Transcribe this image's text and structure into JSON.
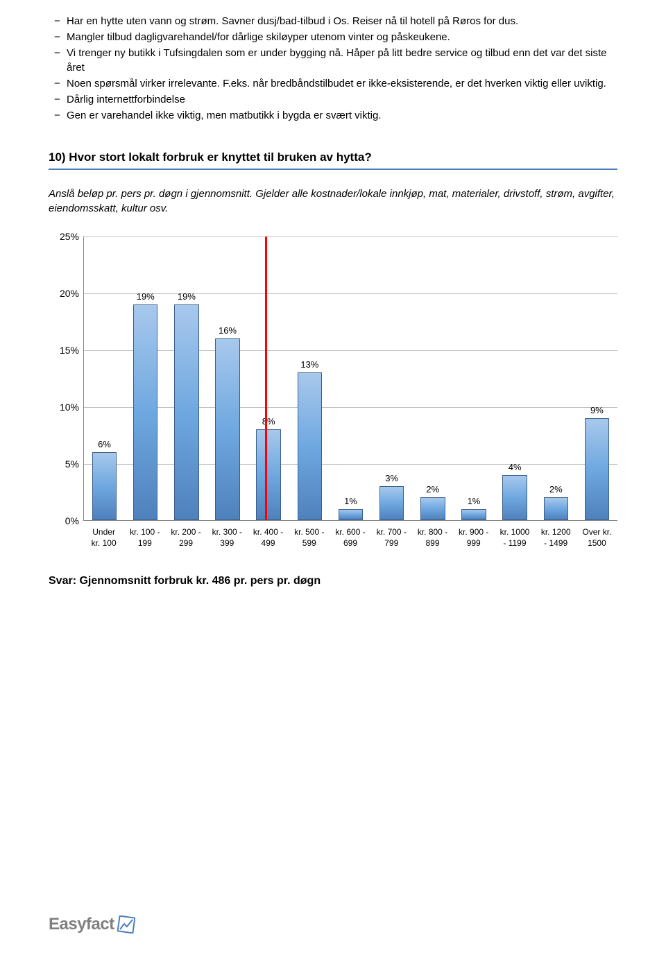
{
  "bullets": [
    "Har en hytte uten vann og strøm. Savner dusj/bad-tilbud i Os. Reiser nå til hotell på Røros for dus.",
    "Mangler tilbud dagligvarehandel/for dårlige skiløyper utenom vinter og påskeukene.",
    "Vi trenger ny butikk i Tufsingdalen som er under bygging nå. Håper på litt bedre service og tilbud enn det var det siste året",
    "Noen spørsmål virker irrelevante. F.eks. når bredbåndstilbudet er ikke-eksisterende, er det hverken viktig eller uviktig.",
    "Dårlig internettforbindelse",
    "Gen er varehandel ikke viktig, men matbutikk i bygda er svært viktig."
  ],
  "question_heading": "10) Hvor stort lokalt forbruk er knyttet til bruken av hytta?",
  "intro_text": "Anslå beløp pr. pers pr. døgn i gjennomsnitt. Gjelder alle kostnader/lokale innkjøp, mat, materialer, drivstoff, strøm, avgifter, eiendomsskatt, kultur osv.",
  "chart": {
    "type": "bar",
    "y_max": 25,
    "y_step": 5,
    "y_ticks": [
      0,
      5,
      10,
      15,
      20,
      25
    ],
    "median_position_pct": 34,
    "bar_fill_top": "#a8c8ec",
    "bar_fill_mid": "#6fa8e0",
    "bar_fill_bottom": "#4f81bd",
    "bar_border": "#3a5f8a",
    "grid_color": "#bfbfbf",
    "median_color": "#ff0000",
    "label_fontsize": 12,
    "value_fontsize": 13,
    "series": [
      {
        "label_l1": "Under",
        "label_l2": "kr. 100",
        "value": 6
      },
      {
        "label_l1": "kr. 100 -",
        "label_l2": "199",
        "value": 19
      },
      {
        "label_l1": "kr. 200 -",
        "label_l2": "299",
        "value": 19
      },
      {
        "label_l1": "kr. 300 -",
        "label_l2": "399",
        "value": 16
      },
      {
        "label_l1": "kr. 400 -",
        "label_l2": "499",
        "value": 8
      },
      {
        "label_l1": "kr. 500 -",
        "label_l2": "599",
        "value": 13
      },
      {
        "label_l1": "kr. 600 -",
        "label_l2": "699",
        "value": 1
      },
      {
        "label_l1": "kr. 700 -",
        "label_l2": "799",
        "value": 3
      },
      {
        "label_l1": "kr. 800 -",
        "label_l2": "899",
        "value": 2
      },
      {
        "label_l1": "kr. 900 -",
        "label_l2": "999",
        "value": 1
      },
      {
        "label_l1": "kr. 1000",
        "label_l2": "- 1199",
        "value": 4
      },
      {
        "label_l1": "kr. 1200",
        "label_l2": "- 1499",
        "value": 2
      },
      {
        "label_l1": "Over kr.",
        "label_l2": "1500",
        "value": 9
      }
    ]
  },
  "answer_text": "Svar: Gjennomsnitt forbruk kr. 486 pr. pers pr. døgn",
  "logo_text": "Easyfact",
  "logo_color": "#7f7f7f",
  "logo_accent": "#4a7ebb"
}
